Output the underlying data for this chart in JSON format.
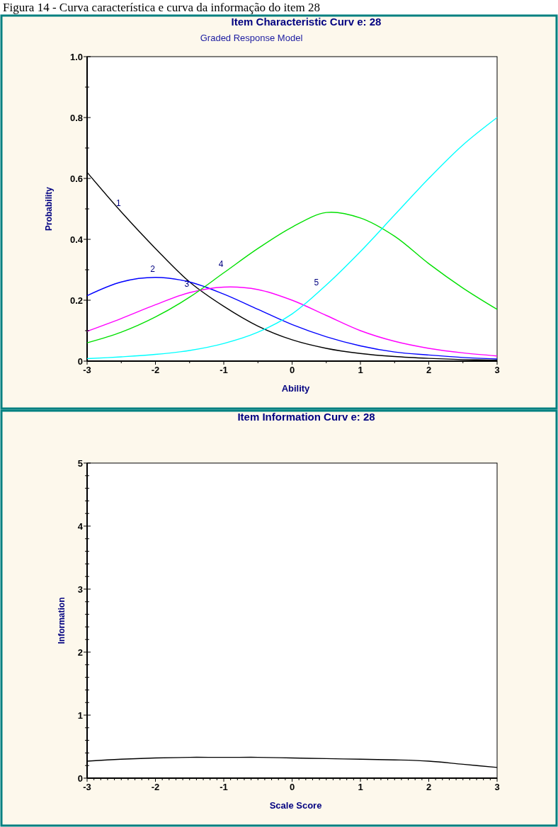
{
  "chart_data": [
    {
      "type": "line",
      "title": "Item Characteristic Curv e: 28",
      "subtitle": "Graded Response Model",
      "xlabel": "Ability",
      "ylabel": "Probability",
      "annotations": [
        "Figura 14 - Curva característica e curva da informação do item 28"
      ],
      "x": [
        -3,
        -2.5,
        -2,
        -1.5,
        -1,
        -0.5,
        0,
        0.5,
        1,
        1.5,
        2,
        2.5,
        3
      ],
      "xlim": [
        -3,
        3
      ],
      "ylim": [
        0,
        1
      ],
      "xticks": [
        -3,
        {
          "value": -2.5,
          "label": null
        },
        -2,
        {
          "value": -1.5,
          "label": null
        },
        -1,
        {
          "value": -0.5,
          "label": null
        },
        0,
        {
          "value": 0.5,
          "label": null
        },
        1,
        {
          "value": 1.5,
          "label": null
        },
        2,
        {
          "value": 2.5,
          "label": null
        },
        3
      ],
      "yticks": [
        {
          "value": 0,
          "label": "0"
        },
        {
          "value": 0.1,
          "label": null
        },
        {
          "value": 0.2,
          "label": "0.2"
        },
        {
          "value": 0.3,
          "label": null
        },
        {
          "value": 0.4,
          "label": "0.4"
        },
        {
          "value": 0.5,
          "label": null
        },
        {
          "value": 0.6,
          "label": "0.6"
        },
        {
          "value": 0.7,
          "label": null
        },
        {
          "value": 0.8,
          "label": "0.8"
        },
        {
          "value": 0.9,
          "label": null
        },
        {
          "value": 1,
          "label": "1.0"
        }
      ],
      "series": [
        {
          "name": "1",
          "color": "#000000",
          "values": [
            0.62,
            0.49,
            0.37,
            0.26,
            0.18,
            0.115,
            0.07,
            0.042,
            0.025,
            0.015,
            0.009,
            0.005,
            0.003
          ]
        },
        {
          "name": "2",
          "color": "#0000ff",
          "values": [
            0.215,
            0.26,
            0.275,
            0.26,
            0.22,
            0.17,
            0.12,
            0.08,
            0.05,
            0.03,
            0.02,
            0.012,
            0.007
          ]
        },
        {
          "name": "3",
          "color": "#ff00ff",
          "values": [
            0.098,
            0.14,
            0.185,
            0.225,
            0.243,
            0.235,
            0.2,
            0.15,
            0.1,
            0.065,
            0.042,
            0.027,
            0.017
          ]
        },
        {
          "name": "4",
          "color": "#00e000",
          "values": [
            0.06,
            0.095,
            0.145,
            0.21,
            0.29,
            0.37,
            0.44,
            0.488,
            0.47,
            0.41,
            0.32,
            0.24,
            0.17
          ]
        },
        {
          "name": "5",
          "color": "#00ffff",
          "values": [
            0.008,
            0.014,
            0.022,
            0.035,
            0.058,
            0.095,
            0.155,
            0.25,
            0.36,
            0.48,
            0.6,
            0.71,
            0.8
          ]
        }
      ]
    },
    {
      "type": "line",
      "title": "Item Information Curv e: 28",
      "xlabel": "Scale Score",
      "ylabel": "Information",
      "x": [
        -3,
        -2.5,
        -2,
        -1.5,
        -1,
        -0.5,
        0,
        0.5,
        1,
        1.5,
        2,
        2.5,
        3
      ],
      "xlim": [
        -3,
        3
      ],
      "ylim": [
        0,
        5
      ],
      "xticks": [
        -3,
        {
          "value": -2.9,
          "label": null
        },
        {
          "value": -2.8,
          "label": null
        },
        {
          "value": -2.7,
          "label": null
        },
        {
          "value": -2.6,
          "label": null
        },
        {
          "value": -2.5,
          "label": null
        },
        {
          "value": -2.4,
          "label": null
        },
        {
          "value": -2.3,
          "label": null
        },
        {
          "value": -2.2,
          "label": null
        },
        {
          "value": -2.1,
          "label": null
        },
        -2,
        {
          "value": -1.9,
          "label": null
        },
        {
          "value": -1.8,
          "label": null
        },
        {
          "value": -1.7,
          "label": null
        },
        {
          "value": -1.6,
          "label": null
        },
        {
          "value": -1.5,
          "label": null
        },
        {
          "value": -1.4,
          "label": null
        },
        {
          "value": -1.3,
          "label": null
        },
        {
          "value": -1.2,
          "label": null
        },
        {
          "value": -1.1,
          "label": null
        },
        -1,
        {
          "value": -0.9,
          "label": null
        },
        {
          "value": -0.8,
          "label": null
        },
        {
          "value": -0.7,
          "label": null
        },
        {
          "value": -0.6,
          "label": null
        },
        {
          "value": -0.5,
          "label": null
        },
        {
          "value": -0.4,
          "label": null
        },
        {
          "value": -0.3,
          "label": null
        },
        {
          "value": -0.2,
          "label": null
        },
        {
          "value": -0.1,
          "label": null
        },
        0,
        {
          "value": 0.1,
          "label": null
        },
        {
          "value": 0.2,
          "label": null
        },
        {
          "value": 0.3,
          "label": null
        },
        {
          "value": 0.4,
          "label": null
        },
        {
          "value": 0.5,
          "label": null
        },
        {
          "value": 0.6,
          "label": null
        },
        {
          "value": 0.7,
          "label": null
        },
        {
          "value": 0.8,
          "label": null
        },
        {
          "value": 0.9,
          "label": null
        },
        1,
        {
          "value": 1.1,
          "label": null
        },
        {
          "value": 1.2,
          "label": null
        },
        {
          "value": 1.3,
          "label": null
        },
        {
          "value": 1.4,
          "label": null
        },
        {
          "value": 1.5,
          "label": null
        },
        {
          "value": 1.6,
          "label": null
        },
        {
          "value": 1.7,
          "label": null
        },
        {
          "value": 1.8,
          "label": null
        },
        {
          "value": 1.9,
          "label": null
        },
        2,
        {
          "value": 2.1,
          "label": null
        },
        {
          "value": 2.2,
          "label": null
        },
        {
          "value": 2.3,
          "label": null
        },
        {
          "value": 2.4,
          "label": null
        },
        {
          "value": 2.5,
          "label": null
        },
        {
          "value": 2.6,
          "label": null
        },
        {
          "value": 2.7,
          "label": null
        },
        {
          "value": 2.8,
          "label": null
        },
        {
          "value": 2.9,
          "label": null
        },
        3
      ],
      "yticks": [
        0,
        {
          "value": 0.2,
          "label": null
        },
        {
          "value": 0.4,
          "label": null
        },
        {
          "value": 0.6,
          "label": null
        },
        {
          "value": 0.8,
          "label": null
        },
        1,
        {
          "value": 1.2,
          "label": null
        },
        {
          "value": 1.4,
          "label": null
        },
        {
          "value": 1.6,
          "label": null
        },
        {
          "value": 1.8,
          "label": null
        },
        2,
        {
          "value": 2.2,
          "label": null
        },
        {
          "value": 2.4,
          "label": null
        },
        {
          "value": 2.6,
          "label": null
        },
        {
          "value": 2.8,
          "label": null
        },
        3,
        {
          "value": 3.2,
          "label": null
        },
        {
          "value": 3.4,
          "label": null
        },
        {
          "value": 3.6,
          "label": null
        },
        {
          "value": 3.8,
          "label": null
        },
        4,
        {
          "value": 4.2,
          "label": null
        },
        {
          "value": 4.4,
          "label": null
        },
        {
          "value": 4.6,
          "label": null
        },
        {
          "value": 4.8,
          "label": null
        },
        5
      ],
      "series": [
        {
          "color": "#000000",
          "values": [
            0.27,
            0.3,
            0.32,
            0.33,
            0.33,
            0.33,
            0.32,
            0.31,
            0.3,
            0.29,
            0.27,
            0.22,
            0.17
          ]
        }
      ]
    }
  ]
}
